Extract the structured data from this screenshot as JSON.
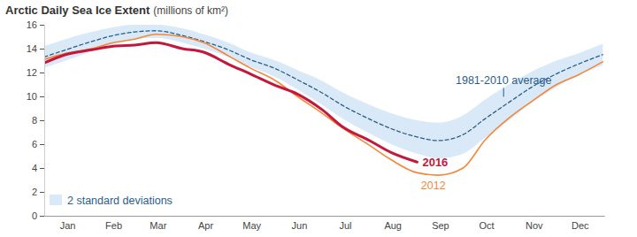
{
  "chart_data": {
    "type": "line",
    "title": "Arctic Daily Sea Ice Extent",
    "subtitle": "(millions of km²)",
    "x": [
      1,
      15,
      32,
      46,
      60,
      74,
      91,
      105,
      121,
      135,
      152,
      166,
      182,
      196,
      213,
      227,
      244,
      258,
      274,
      288,
      305,
      319,
      335,
      349,
      365
    ],
    "xlim": [
      1,
      366
    ],
    "xticks": [
      {
        "value": 16,
        "label": "Jan"
      },
      {
        "value": 46,
        "label": "Feb"
      },
      {
        "value": 75,
        "label": "Mar"
      },
      {
        "value": 106,
        "label": "Apr"
      },
      {
        "value": 136,
        "label": "May"
      },
      {
        "value": 167,
        "label": "Jun"
      },
      {
        "value": 197,
        "label": "Jul"
      },
      {
        "value": 228,
        "label": "Aug"
      },
      {
        "value": 259,
        "label": "Sep"
      },
      {
        "value": 289,
        "label": "Oct"
      },
      {
        "value": 320,
        "label": "Nov"
      },
      {
        "value": 350,
        "label": "Dec"
      }
    ],
    "ylim": [
      0,
      16
    ],
    "yticks": [
      0,
      2,
      4,
      6,
      8,
      10,
      12,
      14,
      16
    ],
    "legend": "bottom-left",
    "series": [
      {
        "name": "2 standard deviations",
        "type": "area",
        "color": "#d9e9f7",
        "lower": [
          12.4,
          13.0,
          13.8,
          14.4,
          14.8,
          14.9,
          14.5,
          14.0,
          13.3,
          12.5,
          11.6,
          10.6,
          9.3,
          8.1,
          6.9,
          6.0,
          5.2,
          4.8,
          5.2,
          6.5,
          8.1,
          9.5,
          10.8,
          11.8,
          12.6
        ],
        "upper": [
          14.2,
          14.8,
          15.4,
          15.8,
          16.0,
          16.0,
          15.7,
          15.2,
          14.5,
          13.7,
          13.0,
          12.2,
          11.3,
          10.3,
          9.3,
          8.6,
          8.0,
          7.8,
          8.4,
          9.7,
          11.1,
          12.1,
          13.0,
          13.6,
          14.4
        ]
      },
      {
        "name": "1981-2010 average",
        "color": "#2b5d8c",
        "line_style": "dashed",
        "values": [
          13.3,
          13.9,
          14.6,
          15.1,
          15.4,
          15.5,
          15.1,
          14.6,
          13.9,
          13.1,
          12.3,
          11.4,
          10.3,
          9.2,
          8.1,
          7.3,
          6.6,
          6.3,
          6.8,
          8.1,
          9.6,
          10.8,
          11.9,
          12.7,
          13.5
        ]
      },
      {
        "name": "2012",
        "color": "#f5873a",
        "line_style": "solid",
        "values": [
          13.1,
          13.6,
          14.0,
          14.5,
          14.8,
          15.2,
          15.0,
          14.5,
          13.4,
          12.4,
          11.3,
          10.0,
          8.6,
          7.3,
          5.9,
          4.7,
          3.6,
          3.4,
          4.0,
          6.3,
          8.3,
          9.6,
          11.0,
          11.8,
          12.9
        ]
      },
      {
        "name": "2016",
        "color": "#c4173c",
        "line_style": "solid",
        "values": [
          12.8,
          13.5,
          13.9,
          14.2,
          14.3,
          14.5,
          14.0,
          13.7,
          12.7,
          11.9,
          10.9,
          10.2,
          8.9,
          7.4,
          6.3,
          5.3,
          4.5,
          null,
          null,
          null,
          null,
          null,
          null,
          null,
          null
        ]
      }
    ]
  }
}
